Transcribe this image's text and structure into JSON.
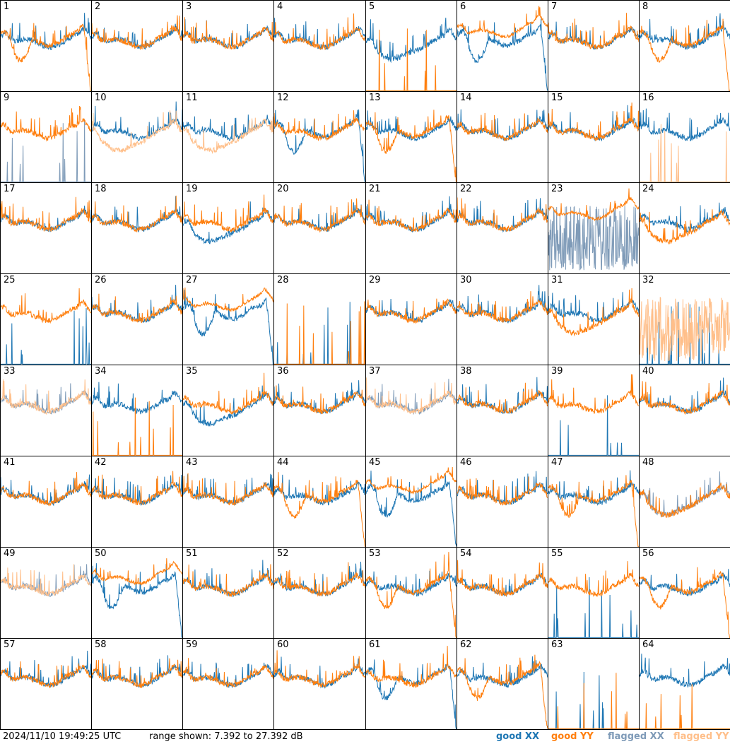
{
  "footer": {
    "timestamp": "2024/11/10 19:49:25 UTC",
    "range_text": "range shown: 7.392 to 27.392 dB",
    "legend": [
      {
        "label": "good XX",
        "color": "#1f77b4"
      },
      {
        "label": "good YY",
        "color": "#ff7f0e"
      },
      {
        "label": "flagged XX",
        "color": "#7f9bb8"
      },
      {
        "label": "flagged YY",
        "color": "#ffbf8a"
      }
    ]
  },
  "chart_data": {
    "type": "line",
    "grid": {
      "rows": 8,
      "cols": 8
    },
    "ylim": [
      7.392,
      27.392
    ],
    "yunit": "dB",
    "colors": {
      "good_xx": "#1f77b4",
      "good_yy": "#ff7f0e",
      "flagged_xx": "#7f9bb8",
      "flagged_yy": "#ffbf8a"
    },
    "panels": [
      {
        "label": "1",
        "xx": {
          "state": "good",
          "shape": "normal"
        },
        "yy": {
          "state": "good",
          "shape": "droop"
        }
      },
      {
        "label": "2",
        "xx": {
          "state": "good",
          "shape": "normal"
        },
        "yy": {
          "state": "good",
          "shape": "normal"
        }
      },
      {
        "label": "3",
        "xx": {
          "state": "good",
          "shape": "normal"
        },
        "yy": {
          "state": "good",
          "shape": "normal"
        }
      },
      {
        "label": "4",
        "xx": {
          "state": "good",
          "shape": "normal"
        },
        "yy": {
          "state": "good",
          "shape": "normal"
        }
      },
      {
        "label": "5",
        "xx": {
          "state": "good",
          "shape": "dip"
        },
        "yy": {
          "state": "good",
          "shape": "dead"
        }
      },
      {
        "label": "6",
        "xx": {
          "state": "good",
          "shape": "droop"
        },
        "yy": {
          "state": "good",
          "shape": "high"
        }
      },
      {
        "label": "7",
        "xx": {
          "state": "good",
          "shape": "normal"
        },
        "yy": {
          "state": "good",
          "shape": "normal"
        }
      },
      {
        "label": "8",
        "xx": {
          "state": "good",
          "shape": "normal"
        },
        "yy": {
          "state": "good",
          "shape": "droop"
        }
      },
      {
        "label": "9",
        "xx": {
          "state": "flagged",
          "shape": "dead"
        },
        "yy": {
          "state": "good",
          "shape": "normal"
        }
      },
      {
        "label": "10",
        "xx": {
          "state": "good",
          "shape": "normal"
        },
        "yy": {
          "state": "flagged",
          "shape": "dip"
        }
      },
      {
        "label": "11",
        "xx": {
          "state": "good",
          "shape": "normal"
        },
        "yy": {
          "state": "flagged",
          "shape": "dip"
        }
      },
      {
        "label": "12",
        "xx": {
          "state": "good",
          "shape": "droop"
        },
        "yy": {
          "state": "good",
          "shape": "normal"
        }
      },
      {
        "label": "13",
        "xx": {
          "state": "good",
          "shape": "normal"
        },
        "yy": {
          "state": "good",
          "shape": "droop"
        }
      },
      {
        "label": "14",
        "xx": {
          "state": "good",
          "shape": "normal"
        },
        "yy": {
          "state": "good",
          "shape": "normal"
        }
      },
      {
        "label": "15",
        "xx": {
          "state": "good",
          "shape": "normal"
        },
        "yy": {
          "state": "good",
          "shape": "normal"
        }
      },
      {
        "label": "16",
        "xx": {
          "state": "good",
          "shape": "normal"
        },
        "yy": {
          "state": "flagged",
          "shape": "dead"
        }
      },
      {
        "label": "17",
        "xx": {
          "state": "good",
          "shape": "normal"
        },
        "yy": {
          "state": "good",
          "shape": "normal"
        }
      },
      {
        "label": "18",
        "xx": {
          "state": "good",
          "shape": "normal"
        },
        "yy": {
          "state": "good",
          "shape": "normal"
        }
      },
      {
        "label": "19",
        "xx": {
          "state": "good",
          "shape": "dip"
        },
        "yy": {
          "state": "good",
          "shape": "normal"
        }
      },
      {
        "label": "20",
        "xx": {
          "state": "good",
          "shape": "normal"
        },
        "yy": {
          "state": "good",
          "shape": "normal"
        }
      },
      {
        "label": "21",
        "xx": {
          "state": "good",
          "shape": "normal"
        },
        "yy": {
          "state": "good",
          "shape": "normal"
        }
      },
      {
        "label": "22",
        "xx": {
          "state": "good",
          "shape": "normal"
        },
        "yy": {
          "state": "good",
          "shape": "normal"
        }
      },
      {
        "label": "23",
        "xx": {
          "state": "flagged",
          "shape": "noisy"
        },
        "yy": {
          "state": "good",
          "shape": "high"
        }
      },
      {
        "label": "24",
        "xx": {
          "state": "good",
          "shape": "normal"
        },
        "yy": {
          "state": "good",
          "shape": "dip"
        }
      },
      {
        "label": "25",
        "xx": {
          "state": "good",
          "shape": "dead"
        },
        "yy": {
          "state": "good",
          "shape": "normal"
        }
      },
      {
        "label": "26",
        "xx": {
          "state": "good",
          "shape": "normal"
        },
        "yy": {
          "state": "good",
          "shape": "normal"
        }
      },
      {
        "label": "27",
        "xx": {
          "state": "good",
          "shape": "droop"
        },
        "yy": {
          "state": "good",
          "shape": "high"
        }
      },
      {
        "label": "28",
        "xx": {
          "state": "good",
          "shape": "dead"
        },
        "yy": {
          "state": "good",
          "shape": "dead"
        }
      },
      {
        "label": "29",
        "xx": {
          "state": "good",
          "shape": "normal"
        },
        "yy": {
          "state": "good",
          "shape": "normal"
        }
      },
      {
        "label": "30",
        "xx": {
          "state": "good",
          "shape": "normal"
        },
        "yy": {
          "state": "good",
          "shape": "normal"
        }
      },
      {
        "label": "31",
        "xx": {
          "state": "good",
          "shape": "normal"
        },
        "yy": {
          "state": "good",
          "shape": "dip"
        }
      },
      {
        "label": "32",
        "xx": {
          "state": "good",
          "shape": "dead"
        },
        "yy": {
          "state": "flagged",
          "shape": "noisy"
        }
      },
      {
        "label": "33",
        "xx": {
          "state": "flagged",
          "shape": "normal"
        },
        "yy": {
          "state": "flagged",
          "shape": "normal"
        }
      },
      {
        "label": "34",
        "xx": {
          "state": "good",
          "shape": "normal"
        },
        "yy": {
          "state": "good",
          "shape": "dead"
        }
      },
      {
        "label": "35",
        "xx": {
          "state": "good",
          "shape": "dip"
        },
        "yy": {
          "state": "good",
          "shape": "normal"
        }
      },
      {
        "label": "36",
        "xx": {
          "state": "good",
          "shape": "normal"
        },
        "yy": {
          "state": "good",
          "shape": "normal"
        }
      },
      {
        "label": "37",
        "xx": {
          "state": "flagged",
          "shape": "normal"
        },
        "yy": {
          "state": "flagged",
          "shape": "normal"
        }
      },
      {
        "label": "38",
        "xx": {
          "state": "good",
          "shape": "normal"
        },
        "yy": {
          "state": "good",
          "shape": "normal"
        }
      },
      {
        "label": "39",
        "xx": {
          "state": "good",
          "shape": "dead"
        },
        "yy": {
          "state": "good",
          "shape": "normal"
        }
      },
      {
        "label": "40",
        "xx": {
          "state": "good",
          "shape": "normal"
        },
        "yy": {
          "state": "good",
          "shape": "normal"
        }
      },
      {
        "label": "41",
        "xx": {
          "state": "good",
          "shape": "normal"
        },
        "yy": {
          "state": "good",
          "shape": "normal"
        }
      },
      {
        "label": "42",
        "xx": {
          "state": "good",
          "shape": "normal"
        },
        "yy": {
          "state": "good",
          "shape": "normal"
        }
      },
      {
        "label": "43",
        "xx": {
          "state": "good",
          "shape": "normal"
        },
        "yy": {
          "state": "good",
          "shape": "normal"
        }
      },
      {
        "label": "44",
        "xx": {
          "state": "good",
          "shape": "normal"
        },
        "yy": {
          "state": "good",
          "shape": "droop"
        }
      },
      {
        "label": "45",
        "xx": {
          "state": "good",
          "shape": "droop"
        },
        "yy": {
          "state": "good",
          "shape": "high"
        }
      },
      {
        "label": "46",
        "xx": {
          "state": "good",
          "shape": "normal"
        },
        "yy": {
          "state": "good",
          "shape": "normal"
        }
      },
      {
        "label": "47",
        "xx": {
          "state": "good",
          "shape": "normal"
        },
        "yy": {
          "state": "good",
          "shape": "droop"
        }
      },
      {
        "label": "48",
        "xx": {
          "state": "flagged",
          "shape": "dip"
        },
        "yy": {
          "state": "good",
          "shape": "dip"
        }
      },
      {
        "label": "49",
        "xx": {
          "state": "flagged",
          "shape": "normal"
        },
        "yy": {
          "state": "flagged",
          "shape": "normal"
        }
      },
      {
        "label": "50",
        "xx": {
          "state": "good",
          "shape": "droop"
        },
        "yy": {
          "state": "good",
          "shape": "high"
        }
      },
      {
        "label": "51",
        "xx": {
          "state": "good",
          "shape": "normal"
        },
        "yy": {
          "state": "good",
          "shape": "normal"
        }
      },
      {
        "label": "52",
        "xx": {
          "state": "good",
          "shape": "normal"
        },
        "yy": {
          "state": "good",
          "shape": "normal"
        }
      },
      {
        "label": "53",
        "xx": {
          "state": "good",
          "shape": "normal"
        },
        "yy": {
          "state": "good",
          "shape": "droop"
        }
      },
      {
        "label": "54",
        "xx": {
          "state": "good",
          "shape": "normal"
        },
        "yy": {
          "state": "good",
          "shape": "normal"
        }
      },
      {
        "label": "55",
        "xx": {
          "state": "good",
          "shape": "dead"
        },
        "yy": {
          "state": "good",
          "shape": "normal"
        }
      },
      {
        "label": "56",
        "xx": {
          "state": "good",
          "shape": "normal"
        },
        "yy": {
          "state": "good",
          "shape": "droop"
        }
      },
      {
        "label": "57",
        "xx": {
          "state": "good",
          "shape": "normal"
        },
        "yy": {
          "state": "good",
          "shape": "normal"
        }
      },
      {
        "label": "58",
        "xx": {
          "state": "good",
          "shape": "normal"
        },
        "yy": {
          "state": "good",
          "shape": "normal"
        }
      },
      {
        "label": "59",
        "xx": {
          "state": "good",
          "shape": "normal"
        },
        "yy": {
          "state": "good",
          "shape": "normal"
        }
      },
      {
        "label": "60",
        "xx": {
          "state": "good",
          "shape": "normal"
        },
        "yy": {
          "state": "good",
          "shape": "normal"
        }
      },
      {
        "label": "61",
        "xx": {
          "state": "good",
          "shape": "droop"
        },
        "yy": {
          "state": "good",
          "shape": "normal"
        }
      },
      {
        "label": "62",
        "xx": {
          "state": "good",
          "shape": "normal"
        },
        "yy": {
          "state": "good",
          "shape": "droop"
        }
      },
      {
        "label": "63",
        "xx": {
          "state": "good",
          "shape": "dead"
        },
        "yy": {
          "state": "good",
          "shape": "dead"
        }
      },
      {
        "label": "64",
        "xx": {
          "state": "good",
          "shape": "normal"
        },
        "yy": {
          "state": "good",
          "shape": "dead"
        }
      }
    ]
  }
}
